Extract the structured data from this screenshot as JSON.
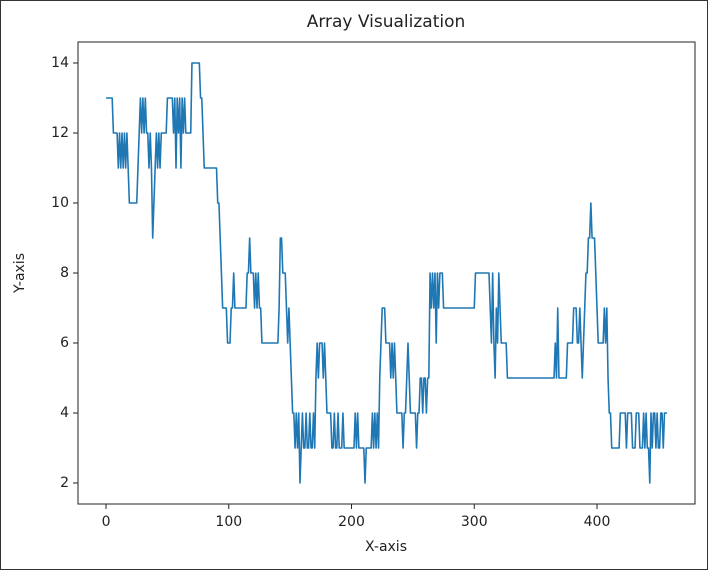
{
  "chart_data": {
    "type": "line",
    "title": "Array Visualization",
    "x_label": "X-axis",
    "y_label": "Y-axis",
    "color": "#1f77b4",
    "x": [
      0,
      1,
      2,
      3,
      4,
      5,
      6,
      7,
      8,
      9,
      10,
      11,
      12,
      13,
      14,
      15,
      16,
      17,
      18,
      19,
      20,
      21,
      22,
      23,
      24,
      25,
      26,
      27,
      28,
      29,
      30,
      31,
      32,
      33,
      34,
      35,
      36,
      37,
      38,
      39,
      40,
      41,
      42,
      43,
      44,
      45,
      46,
      47,
      48,
      49,
      50,
      51,
      52,
      53,
      54,
      55,
      56,
      57,
      58,
      59,
      60,
      61,
      62,
      63,
      64,
      65,
      66,
      67,
      68,
      69,
      70,
      71,
      72,
      73,
      74,
      75,
      76,
      77,
      78,
      79,
      80,
      81,
      82,
      83,
      84,
      85,
      86,
      87,
      88,
      89,
      90,
      91,
      92,
      93,
      94,
      95,
      96,
      97,
      98,
      99,
      100,
      101,
      102,
      103,
      104,
      105,
      106,
      107,
      108,
      109,
      110,
      111,
      112,
      113,
      114,
      115,
      116,
      117,
      118,
      119,
      120,
      121,
      122,
      123,
      124,
      125,
      126,
      127,
      128,
      129,
      130,
      131,
      132,
      133,
      134,
      135,
      136,
      137,
      138,
      139,
      140,
      141,
      142,
      143,
      144,
      145,
      146,
      147,
      148,
      149,
      150,
      151,
      152,
      153,
      154,
      155,
      156,
      157,
      158,
      159,
      160,
      161,
      162,
      163,
      164,
      165,
      166,
      167,
      168,
      169,
      170,
      171,
      172,
      173,
      174,
      175,
      176,
      177,
      178,
      179,
      180,
      181,
      182,
      183,
      184,
      185,
      186,
      187,
      188,
      189,
      190,
      191,
      192,
      193,
      194,
      195,
      196,
      197,
      198,
      199,
      200,
      201,
      202,
      203,
      204,
      205,
      206,
      207,
      208,
      209,
      210,
      211,
      212,
      213,
      214,
      215,
      216,
      217,
      218,
      219,
      220,
      221,
      222,
      223,
      224,
      225,
      226,
      227,
      228,
      229,
      230,
      231,
      232,
      233,
      234,
      235,
      236,
      237,
      238,
      239,
      240,
      241,
      242,
      243,
      244,
      245,
      246,
      247,
      248,
      249,
      250,
      251,
      252,
      253,
      254,
      255,
      256,
      257,
      258,
      259,
      260,
      261,
      262,
      263,
      264,
      265,
      266,
      267,
      268,
      269,
      270,
      271,
      272,
      273,
      274,
      275,
      276,
      277,
      278,
      279,
      280,
      281,
      282,
      283,
      284,
      285,
      286,
      287,
      288,
      289,
      290,
      291,
      292,
      293,
      294,
      295,
      296,
      297,
      298,
      299,
      300,
      301,
      302,
      303,
      304,
      305,
      306,
      307,
      308,
      309,
      310,
      311,
      312,
      313,
      314,
      315,
      316,
      317,
      318,
      319,
      320,
      321,
      322,
      323,
      324,
      325,
      326,
      327,
      328,
      329,
      330,
      331,
      332,
      333,
      334,
      335,
      336,
      337,
      338,
      339,
      340,
      341,
      342,
      343,
      344,
      345,
      346,
      347,
      348,
      349,
      350,
      351,
      352,
      353,
      354,
      355,
      356,
      357,
      358,
      359,
      360,
      361,
      362,
      363,
      364,
      365,
      366,
      367,
      368,
      369,
      370,
      371,
      372,
      373,
      374,
      375,
      376,
      377,
      378,
      379,
      380,
      381,
      382,
      383,
      384,
      385,
      386,
      387,
      388,
      389,
      390,
      391,
      392,
      393,
      394,
      395,
      396,
      397,
      398,
      399,
      400,
      401,
      402,
      403,
      404,
      405,
      406,
      407,
      408,
      409,
      410,
      411,
      412,
      413,
      414,
      415,
      416,
      417,
      418,
      419,
      420,
      421,
      422,
      423,
      424,
      425,
      426,
      427,
      428,
      429,
      430,
      431,
      432,
      433,
      434,
      435,
      436,
      437,
      438,
      439,
      440,
      441,
      442,
      443,
      444,
      445,
      446,
      447,
      448,
      449,
      450,
      451,
      452,
      453,
      454,
      455,
      456,
      457
    ],
    "values": [
      13,
      13,
      13,
      13,
      13,
      13,
      12,
      12,
      12,
      12,
      11,
      12,
      11,
      12,
      11,
      12,
      11,
      12,
      11,
      10,
      10,
      10,
      10,
      10,
      10,
      10,
      11,
      12,
      13,
      12,
      13,
      12,
      13,
      12,
      12,
      11,
      12,
      11,
      9,
      10,
      11,
      12,
      11,
      12,
      11,
      12,
      12,
      12,
      12,
      12,
      13,
      13,
      13,
      13,
      13,
      12,
      13,
      11,
      13,
      12,
      13,
      11,
      13,
      12,
      13,
      12,
      12,
      12,
      12,
      12,
      14,
      14,
      14,
      14,
      14,
      14,
      14,
      13,
      13,
      12,
      11,
      11,
      11,
      11,
      11,
      11,
      11,
      11,
      11,
      11,
      11,
      10,
      10,
      9,
      8,
      7,
      7,
      7,
      7,
      6,
      6,
      6,
      7,
      7,
      8,
      7,
      7,
      7,
      7,
      7,
      7,
      7,
      7,
      7,
      7,
      8,
      8,
      9,
      8,
      8,
      8,
      7,
      8,
      7,
      8,
      7,
      7,
      6,
      6,
      6,
      6,
      6,
      6,
      6,
      6,
      6,
      6,
      6,
      6,
      6,
      6,
      7,
      9,
      9,
      8,
      8,
      8,
      7,
      6,
      7,
      6,
      5,
      4,
      4,
      3,
      4,
      3,
      4,
      2,
      3,
      4,
      3,
      3,
      4,
      3,
      3,
      4,
      3,
      3,
      4,
      3,
      5,
      6,
      5,
      6,
      6,
      6,
      5,
      6,
      5,
      4,
      4,
      4,
      4,
      3,
      3,
      4,
      3,
      3,
      4,
      3,
      3,
      3,
      4,
      3,
      3,
      3,
      3,
      3,
      3,
      3,
      3,
      3,
      4,
      3,
      4,
      3,
      3,
      3,
      3,
      3,
      2,
      3,
      3,
      3,
      3,
      3,
      4,
      3,
      4,
      3,
      4,
      3,
      5,
      6,
      7,
      7,
      7,
      6,
      6,
      6,
      6,
      5,
      6,
      5,
      6,
      5,
      4,
      4,
      4,
      4,
      4,
      3,
      4,
      4,
      5,
      6,
      5,
      4,
      4,
      4,
      4,
      4,
      3,
      4,
      4,
      5,
      5,
      4,
      5,
      5,
      4,
      5,
      5,
      8,
      7,
      8,
      7,
      8,
      6,
      8,
      7,
      8,
      8,
      8,
      7,
      7,
      7,
      7,
      7,
      7,
      7,
      7,
      7,
      7,
      7,
      7,
      7,
      7,
      7,
      7,
      7,
      7,
      7,
      7,
      7,
      7,
      7,
      7,
      7,
      7,
      8,
      8,
      8,
      8,
      8,
      8,
      8,
      8,
      8,
      8,
      8,
      8,
      7,
      6,
      8,
      6,
      5,
      7,
      6,
      8,
      7,
      6,
      6,
      6,
      6,
      6,
      5,
      5,
      5,
      5,
      5,
      5,
      5,
      5,
      5,
      5,
      5,
      5,
      5,
      5,
      5,
      5,
      5,
      5,
      5,
      5,
      5,
      5,
      5,
      5,
      5,
      5,
      5,
      5,
      5,
      5,
      5,
      5,
      5,
      5,
      5,
      5,
      5,
      5,
      5,
      6,
      5,
      7,
      5,
      5,
      5,
      5,
      5,
      5,
      5,
      6,
      6,
      6,
      6,
      6,
      7,
      7,
      7,
      6,
      6,
      7,
      6,
      5,
      6,
      7,
      8,
      8,
      9,
      9,
      10,
      9,
      9,
      9,
      8,
      7,
      6,
      6,
      6,
      6,
      6,
      7,
      6,
      7,
      5,
      4,
      4,
      3,
      3,
      3,
      3,
      3,
      3,
      3,
      4,
      4,
      4,
      4,
      4,
      3,
      4,
      4,
      4,
      4,
      3,
      3,
      3,
      4,
      4,
      4,
      3,
      3,
      3,
      4,
      3,
      4,
      3,
      3,
      2,
      4,
      3,
      4,
      4,
      3,
      4,
      3,
      3,
      4,
      4,
      3,
      4,
      4,
      4
    ],
    "xlim": [
      -22.85,
      479.85
    ],
    "xticks": [
      0,
      100,
      200,
      300,
      400
    ],
    "ylim": [
      1.4,
      14.6
    ],
    "yticks": [
      2,
      4,
      6,
      8,
      10,
      12,
      14
    ]
  }
}
